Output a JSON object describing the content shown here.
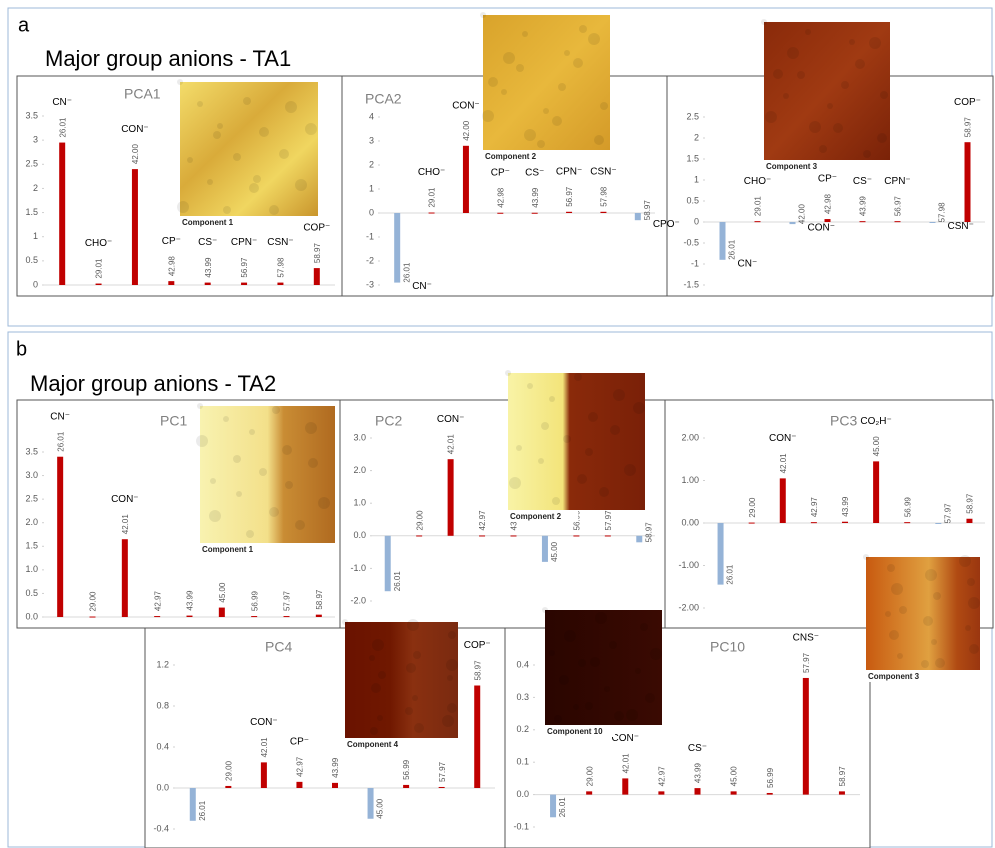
{
  "panels": [
    {
      "label": "a",
      "title": "Major group anions - TA1"
    },
    {
      "label": "b",
      "title": "Major group anions - TA2"
    }
  ],
  "chart_data": [
    {
      "type": "bar",
      "title": "PCA1",
      "image_caption": "Component 1",
      "categories": [
        "26.01",
        "29.01",
        "42.00",
        "42.98",
        "43.99",
        "56.97",
        "57.98",
        "58.97"
      ],
      "ion_labels": [
        "CN⁻",
        "CHO⁻",
        "CON⁻",
        "CP⁻",
        "CS⁻",
        "CPN⁻",
        "CSN⁻",
        "COP⁻"
      ],
      "values": [
        2.95,
        0.03,
        2.4,
        0.08,
        0.05,
        0.05,
        0.05,
        0.35
      ],
      "ylim": [
        0,
        3.5
      ],
      "yticks": [
        0,
        0.5,
        1,
        1.5,
        2,
        2.5,
        3,
        3.5
      ],
      "colors": {
        "positive": "#c00000",
        "negative": "#95b3d7"
      }
    },
    {
      "type": "bar",
      "title": "PCA2",
      "image_caption": "Component 2",
      "categories": [
        "26.01",
        "29.01",
        "42.00",
        "42.98",
        "43.99",
        "56.97",
        "57.98",
        "58.97"
      ],
      "ion_labels": [
        "CN⁻",
        "CHO⁻",
        "CON⁻",
        "CP⁻",
        "CS⁻",
        "CPN⁻",
        "CSN⁻",
        "CPO⁻"
      ],
      "values": [
        -2.9,
        0.02,
        2.8,
        0.01,
        0.01,
        0.05,
        0.05,
        -0.3
      ],
      "ylim": [
        -3,
        4
      ],
      "yticks": [
        -3,
        -2,
        -1,
        0,
        1,
        2,
        3,
        4
      ],
      "colors": {
        "positive": "#c00000",
        "negative": "#95b3d7"
      }
    },
    {
      "type": "bar",
      "image_caption": "Component 3",
      "categories": [
        "26.01",
        "29.01",
        "42.00",
        "42.98",
        "43.99",
        "56.97",
        "57.98",
        "58.97"
      ],
      "ion_labels": [
        "CN⁻",
        "CHO⁻",
        "CON⁻",
        "CP⁻",
        "CS⁻",
        "CPN⁻",
        "CSN⁻",
        "COP⁻"
      ],
      "values": [
        -0.9,
        0.02,
        -0.05,
        0.07,
        0.02,
        0.02,
        -0.01,
        1.9
      ],
      "ylim": [
        -1.5,
        2.5
      ],
      "yticks": [
        -1.5,
        -1,
        -0.5,
        0,
        0.5,
        1,
        1.5,
        2,
        2.5
      ],
      "colors": {
        "positive": "#c00000",
        "negative": "#95b3d7"
      }
    },
    {
      "type": "bar",
      "title": "PC1",
      "image_caption": "Component 1",
      "categories": [
        "26.01",
        "29.00",
        "42.01",
        "42.97",
        "43.99",
        "45.00",
        "56.99",
        "57.97",
        "58.97"
      ],
      "ion_labels": [
        "CN⁻",
        null,
        "CON⁻",
        null,
        null,
        null,
        null,
        null,
        null
      ],
      "values": [
        3.4,
        0.01,
        1.65,
        0.02,
        0.03,
        0.2,
        0.02,
        0.02,
        0.05
      ],
      "ylim": [
        0,
        3.5
      ],
      "yticks": [
        {
          "value": 0,
          "label": "0.0"
        },
        0.5,
        {
          "value": 1,
          "label": "1.0"
        },
        1.5,
        {
          "value": 2,
          "label": "2.0"
        },
        2.5,
        {
          "value": 3,
          "label": "3.0"
        },
        3.5
      ],
      "colors": {
        "positive": "#c00000",
        "negative": "#95b3d7"
      }
    },
    {
      "type": "bar",
      "title": "PC2",
      "image_caption": "Component 2",
      "categories": [
        "26.01",
        "29.00",
        "42.01",
        "42.97",
        "43.99",
        "45.00",
        "56.99",
        "57.97",
        "58.97"
      ],
      "ion_labels": [
        null,
        null,
        "CON⁻",
        null,
        null,
        null,
        null,
        null,
        null
      ],
      "values": [
        -1.7,
        0.01,
        2.35,
        0.01,
        0.01,
        -0.8,
        0.01,
        0.01,
        -0.2
      ],
      "ylim": [
        -2,
        3
      ],
      "yticks": [
        {
          "value": -2,
          "label": "-2.0"
        },
        {
          "value": -1,
          "label": "-1.0"
        },
        {
          "value": 0,
          "label": "0.0"
        },
        {
          "value": 1,
          "label": "1.0"
        },
        {
          "value": 2,
          "label": "2.0"
        },
        {
          "value": 3,
          "label": "3.0"
        }
      ],
      "colors": {
        "positive": "#c00000",
        "negative": "#95b3d7"
      }
    },
    {
      "type": "bar",
      "title": "PC3",
      "image_caption": "Component 3",
      "categories": [
        "26.01",
        "29.00",
        "42.01",
        "42.97",
        "43.99",
        "45.00",
        "56.99",
        "57.97",
        "58.97"
      ],
      "ion_labels": [
        null,
        null,
        "CON⁻",
        null,
        null,
        "CO₂H⁻",
        null,
        null,
        null
      ],
      "values": [
        -1.45,
        0.01,
        1.05,
        0.02,
        0.03,
        1.45,
        0.02,
        -0.01,
        0.1
      ],
      "ylim": [
        -2,
        2
      ],
      "yticks": [
        {
          "value": -2,
          "label": "-2.00"
        },
        {
          "value": -1,
          "label": "-1.00"
        },
        {
          "value": 0,
          "label": "0.00"
        },
        {
          "value": 1,
          "label": "1.00"
        },
        {
          "value": 2,
          "label": "2.00"
        }
      ],
      "colors": {
        "positive": "#c00000",
        "negative": "#95b3d7"
      }
    },
    {
      "type": "bar",
      "title": "PC4",
      "image_caption": "Component 4",
      "categories": [
        "26.01",
        "29.00",
        "42.01",
        "42.97",
        "43.99",
        "45.00",
        "56.99",
        "57.97",
        "58.97"
      ],
      "ion_labels": [
        null,
        null,
        "CON⁻",
        "CP⁻",
        null,
        null,
        null,
        null,
        "COP⁻"
      ],
      "values": [
        -0.32,
        0.02,
        0.25,
        0.06,
        0.05,
        -0.3,
        0.03,
        0.01,
        1.0
      ],
      "ylim": [
        -0.4,
        1.2
      ],
      "yticks": [
        -0.4,
        {
          "value": 0,
          "label": "0.0"
        },
        0.4,
        0.8,
        1.2
      ],
      "colors": {
        "positive": "#c00000",
        "negative": "#95b3d7"
      }
    },
    {
      "type": "bar",
      "title": "PC10",
      "image_caption": "Component 10",
      "categories": [
        "26.01",
        "29.00",
        "42.01",
        "42.97",
        "43.99",
        "45.00",
        "56.99",
        "57.97",
        "58.97"
      ],
      "ion_labels": [
        null,
        null,
        "CON⁻",
        null,
        "CS⁻",
        null,
        null,
        "CNS⁻",
        null
      ],
      "values": [
        -0.07,
        0.01,
        0.05,
        0.01,
        0.02,
        0.01,
        0.005,
        0.36,
        0.01
      ],
      "ylim": [
        -0.1,
        0.4
      ],
      "yticks": [
        -0.1,
        {
          "value": 0,
          "label": "0.0"
        },
        0.1,
        0.2,
        0.3,
        0.4
      ],
      "colors": {
        "positive": "#c00000",
        "negative": "#95b3d7"
      }
    }
  ]
}
